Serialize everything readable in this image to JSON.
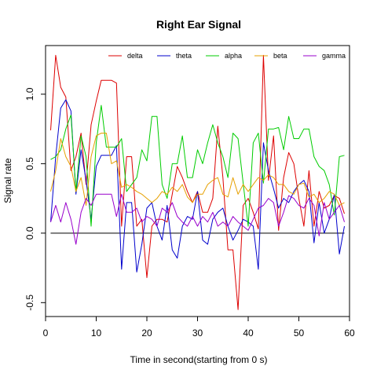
{
  "chart_data": {
    "type": "line",
    "title": "Right Ear Signal",
    "xlabel": "Time in second(starting from 0 s)",
    "ylabel": "Signal rate",
    "xlim": [
      0,
      60
    ],
    "ylim": [
      -0.6,
      1.35
    ],
    "xticks": [
      0,
      10,
      20,
      30,
      40,
      50,
      60
    ],
    "yticks": [
      -0.5,
      0.0,
      0.5,
      1.0
    ],
    "grid": false,
    "legend": "top-right",
    "hline": 0,
    "x": [
      1,
      2,
      3,
      4,
      5,
      6,
      7,
      8,
      9,
      10,
      11,
      12,
      13,
      14,
      15,
      16,
      17,
      18,
      19,
      20,
      21,
      22,
      23,
      24,
      25,
      26,
      27,
      28,
      29,
      30,
      31,
      32,
      33,
      34,
      35,
      36,
      37,
      38,
      39,
      40,
      41,
      42,
      43,
      44,
      45,
      46,
      47,
      48,
      49,
      50,
      51,
      52,
      53,
      54,
      55,
      56,
      57,
      58,
      59
    ],
    "series": [
      {
        "name": "delta",
        "color": "#dd0000",
        "values": [
          0.74,
          1.28,
          1.05,
          0.98,
          0.45,
          0.55,
          0.72,
          0.35,
          0.78,
          0.95,
          1.1,
          1.1,
          1.1,
          1.08,
          0.05,
          0.55,
          0.55,
          0.05,
          0.1,
          -0.32,
          0.05,
          0.1,
          0.1,
          0.08,
          0.28,
          0.48,
          0.4,
          0.3,
          0.22,
          0.3,
          0.15,
          0.15,
          0.25,
          0.77,
          0.4,
          -0.12,
          -0.12,
          -0.55,
          0.2,
          0.25,
          0.15,
          0.03,
          1.28,
          0.38,
          0.7,
          0.02,
          0.4,
          0.58,
          0.5,
          0.25,
          0.05,
          0.45,
          0.05,
          0.3,
          0.18,
          0.2,
          0.27,
          0.25,
          0.14
        ]
      },
      {
        "name": "theta",
        "color": "#0000cc",
        "values": [
          0.08,
          0.55,
          0.9,
          0.96,
          0.88,
          0.28,
          0.6,
          0.38,
          0.1,
          0.48,
          0.56,
          0.56,
          0.56,
          0.63,
          -0.26,
          0.22,
          0.22,
          -0.28,
          -0.08,
          0.18,
          0.22,
          0.05,
          -0.05,
          0.2,
          -0.12,
          -0.18,
          0.05,
          0.12,
          0.1,
          0.3,
          -0.05,
          -0.08,
          0.1,
          0.15,
          0.18,
          0.05,
          -0.05,
          0.02,
          0.1,
          0.08,
          0.05,
          -0.26,
          0.65,
          0.45,
          0.32,
          0.18,
          0.25,
          0.22,
          0.3,
          0.35,
          0.38,
          0.3,
          -0.07,
          0.22,
          0.0,
          0.1,
          0.28,
          -0.15,
          0.05
        ]
      },
      {
        "name": "alpha",
        "color": "#00cc00",
        "values": [
          0.53,
          0.55,
          0.6,
          0.75,
          0.85,
          0.3,
          0.7,
          0.55,
          0.05,
          0.65,
          0.92,
          0.62,
          0.62,
          0.62,
          0.68,
          0.3,
          0.35,
          0.4,
          0.6,
          0.52,
          0.84,
          0.84,
          0.35,
          0.25,
          0.5,
          0.5,
          0.7,
          0.4,
          0.4,
          0.6,
          0.5,
          0.65,
          0.78,
          0.65,
          0.55,
          0.4,
          0.72,
          0.68,
          0.36,
          0.05,
          0.65,
          0.72,
          0.36,
          0.75,
          0.75,
          0.76,
          0.6,
          0.84,
          0.68,
          0.68,
          0.75,
          0.75,
          0.55,
          0.48,
          0.45,
          0.35,
          0.13,
          0.55,
          0.56
        ]
      },
      {
        "name": "beta",
        "color": "#e6a000",
        "values": [
          0.3,
          0.45,
          0.68,
          0.55,
          0.48,
          0.3,
          0.4,
          0.2,
          0.55,
          0.7,
          0.72,
          0.72,
          0.5,
          0.52,
          0.33,
          0.35,
          0.33,
          0.3,
          0.28,
          0.25,
          0.22,
          0.25,
          0.3,
          0.28,
          0.33,
          0.3,
          0.35,
          0.26,
          0.22,
          0.28,
          0.28,
          0.35,
          0.38,
          0.4,
          0.28,
          0.26,
          0.4,
          0.28,
          0.35,
          0.3,
          0.35,
          0.4,
          0.38,
          0.42,
          0.4,
          0.35,
          0.35,
          0.3,
          0.28,
          0.35,
          0.36,
          0.26,
          0.28,
          0.22,
          0.25,
          0.3,
          0.28,
          0.2,
          0.22
        ]
      },
      {
        "name": "gamma",
        "color": "#9900cc",
        "values": [
          0.08,
          0.2,
          0.08,
          0.22,
          0.1,
          -0.08,
          0.15,
          0.25,
          0.2,
          0.28,
          0.28,
          0.28,
          0.28,
          0.12,
          0.28,
          0.15,
          0.15,
          0.18,
          0.08,
          0.12,
          0.1,
          0.05,
          0.18,
          0.15,
          0.22,
          0.12,
          0.08,
          0.05,
          0.12,
          0.05,
          0.12,
          0.08,
          0.15,
          0.05,
          0.08,
          0.05,
          0.12,
          0.08,
          0.05,
          0.02,
          0.1,
          0.18,
          0.2,
          0.25,
          0.22,
          0.05,
          0.15,
          0.27,
          0.25,
          0.2,
          0.18,
          0.25,
          0.2,
          -0.02,
          0.22,
          0.1,
          0.15,
          0.2,
          0.08
        ]
      }
    ]
  }
}
